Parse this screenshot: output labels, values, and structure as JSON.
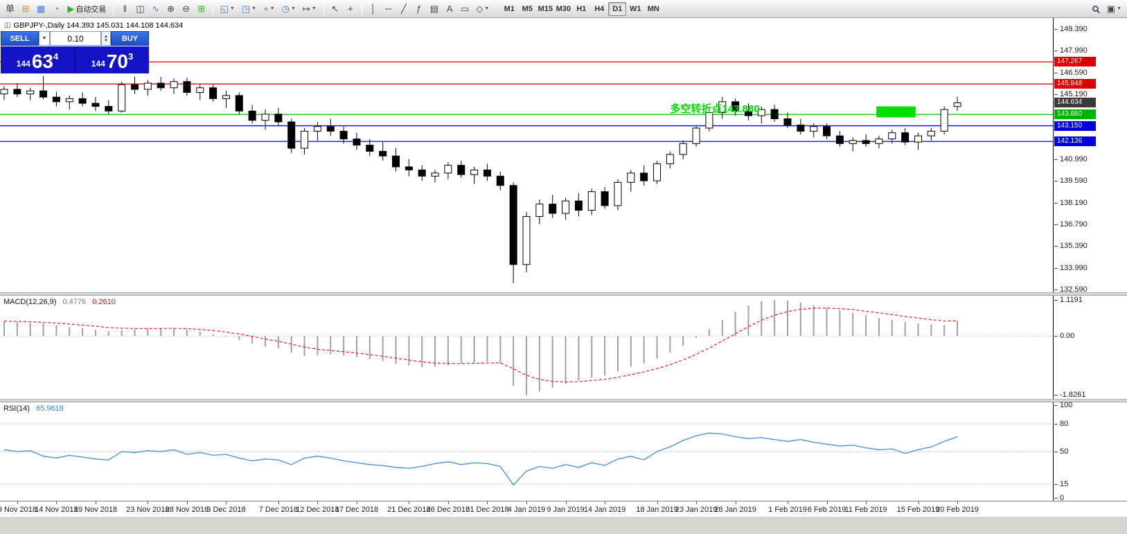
{
  "toolbar": {
    "order_button": "单",
    "autotrade_button": "自动交易",
    "timeframes": [
      "M1",
      "M5",
      "M15",
      "M30",
      "H1",
      "H4",
      "D1",
      "W1",
      "MN"
    ],
    "active_timeframe": "D1"
  },
  "icons": {
    "new_order": "⊞",
    "charts": "▦",
    "refresh": "◔",
    "play": "▶",
    "bars": "‖",
    "candles": "◫",
    "linechart": "∿",
    "zoom_in": "⊕",
    "zoom_out": "⊖",
    "tile": "⊞",
    "window_a": "◱",
    "window_b": "◳",
    "indicator_plus": "+",
    "clock": "◷",
    "shift": "↦",
    "cursor": "↖",
    "crosshair": "+",
    "vline": "│",
    "hline": "─",
    "trendline": "╱",
    "fibo": "ƒ",
    "grid": "▤",
    "text_tool": "A",
    "label_tool": "▭",
    "shapes": "◇",
    "panels": "▣",
    "caret": "▼",
    "spin_up": "▲",
    "spin_down": "▼"
  },
  "symbol_bar": "GBPJPY-,Daily 144.393 145.031 144.108 144.634",
  "trade_panel": {
    "sell_label": "SELL",
    "buy_label": "BUY",
    "lot_value": "0.10",
    "sell_price_prefix": "144",
    "sell_price_main": "63",
    "sell_price_sup": "4",
    "buy_price_prefix": "144",
    "buy_price_main": "70",
    "buy_price_sup": "3"
  },
  "annotation_text": "多空转折点143.880",
  "chart_data": {
    "type": "candlestick",
    "symbol": "GBPJPY-",
    "timeframe": "Daily",
    "ohlc_header": {
      "open": 144.393,
      "high": 145.031,
      "low": 144.108,
      "close": 144.634
    },
    "price_axis": {
      "ticks": [
        "149.390",
        "147.990",
        "146.590",
        "145.190",
        "140.990",
        "139.590",
        "138.190",
        "136.790",
        "135.390",
        "133.990",
        "132.590"
      ],
      "min": 132.59,
      "max": 149.39,
      "step": 1.4
    },
    "price_tags": [
      {
        "label": "147.267",
        "value": 147.267,
        "bg": "#dd0000",
        "fg": "#ffffff",
        "line": true,
        "line_color": "#ff0000"
      },
      {
        "label": "145.848",
        "value": 145.848,
        "bg": "#dd0000",
        "fg": "#ffffff",
        "line": true,
        "line_color": "#ff0000"
      },
      {
        "label": "144.634",
        "value": 144.634,
        "bg": "#3a3a3a",
        "fg": "#ffffff",
        "line": false,
        "line_color": "#3a3a3a"
      },
      {
        "label": "143.880",
        "value": 143.88,
        "bg": "#00b300",
        "fg": "#ffffff",
        "line": true,
        "line_color": "#00c000"
      },
      {
        "label": "143.150",
        "value": 143.15,
        "bg": "#0000dd",
        "fg": "#ffffff",
        "line": true,
        "line_color": "#0000ff"
      },
      {
        "label": "142.136",
        "value": 142.136,
        "bg": "#0000dd",
        "fg": "#ffffff",
        "line": true,
        "line_color": "#0000ff"
      }
    ],
    "rectangle": {
      "from_index": 66.8,
      "to_index": 69.8,
      "price_top": 144.4,
      "price_bottom": 143.69,
      "color": "#00e000"
    },
    "annotation": {
      "index": 51,
      "price": 144.28
    },
    "candles": [
      [
        145.2,
        145.7,
        144.8,
        145.5
      ],
      [
        145.5,
        145.9,
        145.0,
        145.2
      ],
      [
        145.2,
        145.6,
        144.8,
        145.4
      ],
      [
        145.4,
        146.35,
        144.85,
        145.0
      ],
      [
        145.0,
        145.35,
        144.4,
        144.7
      ],
      [
        144.7,
        145.1,
        144.2,
        144.9
      ],
      [
        144.9,
        145.3,
        144.4,
        144.6
      ],
      [
        144.6,
        145.0,
        144.1,
        144.4
      ],
      [
        144.4,
        144.8,
        143.9,
        144.1
      ],
      [
        144.1,
        146.0,
        144.0,
        145.8
      ],
      [
        145.8,
        146.3,
        145.2,
        145.5
      ],
      [
        145.5,
        146.1,
        145.1,
        145.9
      ],
      [
        145.9,
        146.3,
        145.4,
        145.6
      ],
      [
        145.6,
        146.2,
        145.2,
        146.0
      ],
      [
        146.0,
        146.25,
        145.1,
        145.3
      ],
      [
        145.3,
        145.8,
        144.8,
        145.6
      ],
      [
        145.6,
        145.8,
        144.7,
        144.9
      ],
      [
        144.9,
        145.4,
        144.3,
        145.1
      ],
      [
        145.1,
        145.3,
        143.9,
        144.1
      ],
      [
        144.1,
        144.5,
        143.3,
        143.5
      ],
      [
        143.5,
        144.2,
        142.9,
        143.9
      ],
      [
        143.9,
        144.3,
        143.2,
        143.4
      ],
      [
        143.4,
        143.6,
        141.4,
        141.7
      ],
      [
        141.7,
        143.0,
        141.3,
        142.8
      ],
      [
        142.8,
        143.4,
        142.2,
        143.1
      ],
      [
        143.1,
        143.6,
        142.5,
        142.8
      ],
      [
        142.8,
        143.1,
        142.0,
        142.3
      ],
      [
        142.3,
        142.7,
        141.6,
        141.9
      ],
      [
        141.9,
        142.3,
        141.2,
        141.5
      ],
      [
        141.5,
        142.1,
        140.9,
        141.2
      ],
      [
        141.2,
        141.7,
        140.2,
        140.5
      ],
      [
        140.5,
        141.0,
        139.9,
        140.3
      ],
      [
        140.3,
        140.6,
        139.6,
        139.9
      ],
      [
        139.9,
        140.3,
        139.5,
        140.1
      ],
      [
        140.1,
        140.8,
        139.7,
        140.6
      ],
      [
        140.6,
        140.9,
        139.8,
        140.0
      ],
      [
        140.0,
        140.5,
        139.4,
        140.3
      ],
      [
        140.3,
        140.7,
        139.6,
        139.9
      ],
      [
        139.9,
        140.2,
        139.0,
        139.3
      ],
      [
        139.3,
        139.5,
        133.0,
        134.2
      ],
      [
        134.2,
        137.6,
        133.7,
        137.3
      ],
      [
        137.3,
        138.4,
        136.8,
        138.1
      ],
      [
        138.1,
        138.7,
        137.2,
        137.5
      ],
      [
        137.5,
        138.5,
        137.1,
        138.3
      ],
      [
        138.3,
        138.8,
        137.3,
        137.7
      ],
      [
        137.7,
        139.1,
        137.4,
        138.9
      ],
      [
        138.9,
        139.2,
        137.8,
        138.0
      ],
      [
        138.0,
        139.7,
        137.7,
        139.5
      ],
      [
        139.5,
        140.3,
        138.9,
        140.1
      ],
      [
        140.1,
        140.6,
        139.3,
        139.6
      ],
      [
        139.6,
        140.9,
        139.4,
        140.7
      ],
      [
        140.7,
        141.5,
        140.4,
        141.3
      ],
      [
        141.3,
        142.2,
        141.0,
        142.0
      ],
      [
        142.0,
        143.2,
        141.8,
        143.0
      ],
      [
        143.0,
        144.2,
        142.8,
        144.0
      ],
      [
        144.0,
        145.0,
        143.6,
        144.7
      ],
      [
        144.7,
        144.9,
        143.8,
        144.1
      ],
      [
        144.1,
        144.6,
        143.5,
        143.8
      ],
      [
        143.8,
        144.4,
        143.3,
        144.2
      ],
      [
        144.2,
        144.5,
        143.4,
        143.6
      ],
      [
        143.6,
        144.0,
        143.0,
        143.2
      ],
      [
        143.2,
        143.6,
        142.6,
        142.8
      ],
      [
        142.8,
        143.3,
        142.4,
        143.1
      ],
      [
        143.1,
        143.3,
        142.3,
        142.5
      ],
      [
        142.5,
        142.8,
        141.8,
        142.0
      ],
      [
        142.0,
        142.4,
        141.5,
        142.2
      ],
      [
        142.2,
        142.6,
        141.8,
        142.0
      ],
      [
        142.0,
        142.5,
        141.7,
        142.3
      ],
      [
        142.3,
        142.9,
        142.0,
        142.7
      ],
      [
        142.7,
        143.0,
        141.9,
        142.1
      ],
      [
        142.1,
        142.7,
        141.6,
        142.5
      ],
      [
        142.5,
        143.0,
        142.2,
        142.8
      ],
      [
        142.8,
        144.4,
        142.6,
        144.2
      ],
      [
        144.393,
        145.031,
        144.108,
        144.634
      ]
    ],
    "time_axis": [
      {
        "label": "9 Nov 2018",
        "index": 1
      },
      {
        "label": "14 Nov 2018",
        "index": 4
      },
      {
        "label": "19 Nov 2018",
        "index": 7
      },
      {
        "label": "23 Nov 2018",
        "index": 11
      },
      {
        "label": "28 Nov 2018",
        "index": 14
      },
      {
        "label": "3 Dec 2018",
        "index": 17
      },
      {
        "label": "7 Dec 2018",
        "index": 21
      },
      {
        "label": "12 Dec 2018",
        "index": 24
      },
      {
        "label": "17 Dec 2018",
        "index": 27
      },
      {
        "label": "21 Dec 2018",
        "index": 31
      },
      {
        "label": "26 Dec 2018",
        "index": 34
      },
      {
        "label": "31 Dec 2018",
        "index": 37
      },
      {
        "label": "4 Jan 2019",
        "index": 40
      },
      {
        "label": "9 Jan 2019",
        "index": 43
      },
      {
        "label": "14 Jan 2019",
        "index": 46
      },
      {
        "label": "18 Jan 2019",
        "index": 50
      },
      {
        "label": "23 Jan 2019",
        "index": 53
      },
      {
        "label": "28 Jan 2019",
        "index": 56
      },
      {
        "label": "1 Feb 2019",
        "index": 60
      },
      {
        "label": "6 Feb 2019",
        "index": 63
      },
      {
        "label": "11 Feb 2019",
        "index": 66
      },
      {
        "label": "15 Feb 2019",
        "index": 70
      },
      {
        "label": "20 Feb 2019",
        "index": 73
      }
    ],
    "macd": {
      "title": "MACD(12,26,9)",
      "display_main": "0.4776",
      "display_signal": "0.2610",
      "axis_labels": [
        "1.1191",
        "0.00",
        "-1.8261"
      ],
      "axis_values": [
        1.1191,
        0,
        -1.8261
      ],
      "histogram_color": "#a0a0a0",
      "signal_color": "#ff0000",
      "histogram": [
        0.46,
        0.44,
        0.41,
        0.38,
        0.33,
        0.28,
        0.24,
        0.19,
        0.15,
        0.18,
        0.21,
        0.23,
        0.24,
        0.25,
        0.2,
        0.14,
        0.06,
        -0.02,
        -0.12,
        -0.24,
        -0.32,
        -0.38,
        -0.52,
        -0.62,
        -0.6,
        -0.56,
        -0.6,
        -0.66,
        -0.72,
        -0.78,
        -0.86,
        -0.92,
        -0.96,
        -0.95,
        -0.9,
        -0.86,
        -0.82,
        -0.8,
        -0.84,
        -1.55,
        -1.83,
        -1.72,
        -1.6,
        -1.48,
        -1.38,
        -1.28,
        -1.22,
        -1.1,
        -0.95,
        -0.85,
        -0.7,
        -0.52,
        -0.3,
        -0.05,
        0.22,
        0.5,
        0.75,
        0.95,
        1.08,
        1.12,
        1.1,
        1.04,
        0.96,
        0.88,
        0.8,
        0.72,
        0.64,
        0.56,
        0.5,
        0.44,
        0.4,
        0.36,
        0.34,
        0.4776
      ]
    },
    "rsi": {
      "title": "RSI(14)",
      "display_value": "65.9618",
      "axis_labels": [
        "100",
        "80",
        "50",
        "15",
        "0"
      ],
      "axis_values": [
        100,
        80,
        50,
        15,
        0
      ],
      "levels": [
        80,
        50,
        15
      ],
      "line_color": "#3e8ddd",
      "values": [
        52,
        50,
        51,
        45,
        43,
        46,
        44,
        42,
        41,
        50,
        49,
        51,
        50,
        52,
        47,
        49,
        46,
        47,
        43,
        40,
        42,
        41,
        36,
        43,
        45,
        43,
        40,
        38,
        36,
        35,
        33,
        32,
        34,
        37,
        39,
        36,
        38,
        37,
        34,
        14,
        29,
        34,
        32,
        36,
        33,
        38,
        35,
        42,
        45,
        41,
        50,
        55,
        62,
        67,
        70,
        69,
        66,
        64,
        65,
        63,
        61,
        63,
        60,
        58,
        56,
        57,
        54,
        52,
        53,
        48,
        52,
        55,
        61,
        65.96
      ]
    }
  }
}
